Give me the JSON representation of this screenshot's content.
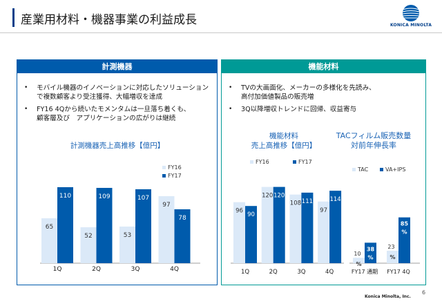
{
  "header": {
    "title": "産業用材料・機器事業の利益成長",
    "logo_text": "KONICA MINOLTA"
  },
  "left_panel": {
    "header": "計測機器",
    "bullets": [
      {
        "line1": "モバイル機器のイノベーションに対応したソリューション",
        "line2": "で複数顧客より受注獲得、大幅増収を達成"
      },
      {
        "line1": "FY16 4Qから続いたモメンタムは一旦落ち着くも、",
        "line2": "顧客層及び　アプリケーションの広がりは継続"
      }
    ],
    "chart_title": "計測機器売上高推移【億円】"
  },
  "right_panel": {
    "header": "機能材料",
    "bullets": [
      {
        "line1": "TVの大画面化、メーカーの多様化を先読み、",
        "line2": "高付加価値製品の販売増"
      },
      {
        "line1": "3Q以降増収トレンドに回帰、収益寄与",
        "line2": ""
      }
    ],
    "chart1_title_line1": "機能材料",
    "chart1_title_line2": "売上高推移【億円】",
    "chart2_title_line1": "TACフィルム販売数量",
    "chart2_title_line2": "対前年伸長率"
  },
  "colors": {
    "fy16": "#dbe9f8",
    "fy17": "#005bac",
    "left_accent": "#005bac",
    "right_accent": "#009a96",
    "title_bar": "#003f8a"
  },
  "chart_data": [
    {
      "type": "bar",
      "title": "計測機器売上高推移【億円】",
      "categories": [
        "1Q",
        "2Q",
        "3Q",
        "4Q"
      ],
      "series": [
        {
          "name": "FY16",
          "values": [
            65,
            52,
            53,
            97
          ]
        },
        {
          "name": "FY17",
          "values": [
            110,
            109,
            107,
            78
          ]
        }
      ],
      "legend_position": "top-right",
      "grid": false
    },
    {
      "type": "bar",
      "title": "機能材料 売上高推移【億円】",
      "categories": [
        "1Q",
        "2Q",
        "3Q",
        "4Q"
      ],
      "series": [
        {
          "name": "FY16",
          "values": [
            96,
            120,
            108,
            97
          ]
        },
        {
          "name": "FY17",
          "values": [
            90,
            120,
            111,
            114
          ]
        }
      ],
      "legend_position": "top",
      "grid": false
    },
    {
      "type": "bar",
      "title": "TACフィルム販売数量 対前年伸長率",
      "categories": [
        "FY17 通期",
        "FY17 4Q"
      ],
      "series": [
        {
          "name": "TAC",
          "values": [
            10,
            23
          ]
        },
        {
          "name": "VA+IPS",
          "values": [
            38,
            85
          ]
        }
      ],
      "unit": "%",
      "legend_position": "top",
      "grid": false
    }
  ],
  "footer": {
    "company": "Konica Minolta, Inc.",
    "page": "6"
  }
}
